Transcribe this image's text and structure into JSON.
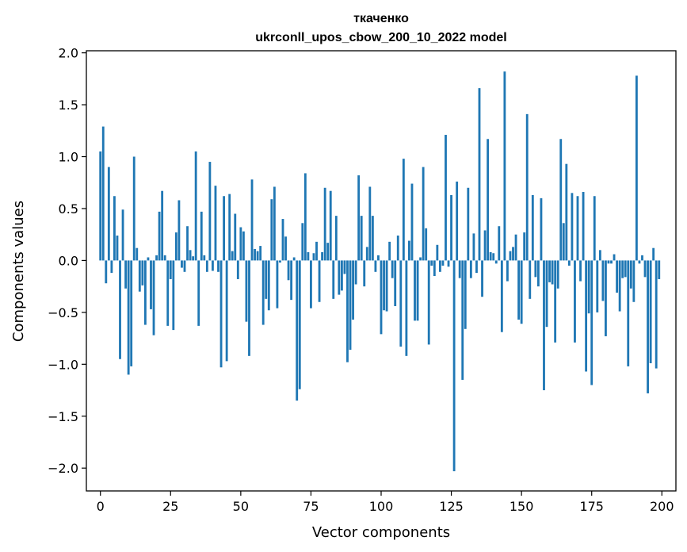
{
  "chart_data": {
    "type": "bar",
    "title_line1": "ткаченко",
    "title_line2": "ukrconll_upos_cbow_200_10_2022 model",
    "xlabel": "Vector components",
    "ylabel": "Components values",
    "xlim": [
      -5,
      205
    ],
    "ylim": [
      -2.22,
      2.02
    ],
    "xticks": [
      0,
      25,
      50,
      75,
      100,
      125,
      150,
      175,
      200
    ],
    "xtick_labels": [
      "0",
      "25",
      "50",
      "75",
      "100",
      "125",
      "150",
      "175",
      "200"
    ],
    "yticks": [
      2.0,
      1.5,
      1.0,
      0.5,
      0.0,
      -0.5,
      -1.0,
      -1.5,
      -2.0
    ],
    "ytick_labels": [
      "2.0",
      "1.5",
      "1.0",
      "0.5",
      "0.0",
      "−0.5",
      "−1.0",
      "−1.5",
      "−2.0"
    ],
    "bar_color": "#1f77b4",
    "bar_width": 0.8,
    "values": [
      1.05,
      1.29,
      -0.22,
      0.9,
      -0.12,
      0.62,
      0.24,
      -0.95,
      0.49,
      -0.27,
      -1.1,
      -1.02,
      1.0,
      0.12,
      -0.3,
      -0.24,
      -0.62,
      0.03,
      -0.47,
      -0.72,
      0.05,
      0.47,
      0.67,
      0.05,
      -0.63,
      -0.18,
      -0.67,
      0.27,
      0.58,
      -0.07,
      -0.11,
      0.33,
      0.1,
      0.04,
      1.05,
      -0.63,
      0.47,
      0.05,
      -0.11,
      0.95,
      -0.1,
      0.72,
      -0.11,
      -1.03,
      0.62,
      -0.97,
      0.64,
      0.09,
      0.45,
      -0.18,
      0.32,
      0.28,
      -0.59,
      -0.92,
      0.78,
      0.11,
      0.09,
      0.14,
      -0.62,
      -0.37,
      -0.48,
      0.59,
      0.71,
      -0.46,
      -0.02,
      0.4,
      0.23,
      -0.19,
      -0.38,
      0.03,
      -1.35,
      -1.24,
      0.36,
      0.84,
      0.08,
      -0.46,
      0.07,
      0.18,
      -0.4,
      0.08,
      0.7,
      0.17,
      0.67,
      -0.37,
      0.43,
      -0.33,
      -0.29,
      -0.13,
      -0.98,
      -0.86,
      -0.57,
      -0.23,
      0.82,
      0.43,
      -0.25,
      0.13,
      0.71,
      0.43,
      -0.11,
      0.05,
      -0.71,
      -0.48,
      -0.49,
      0.18,
      -0.17,
      -0.44,
      0.24,
      -0.83,
      0.98,
      -0.92,
      0.19,
      0.74,
      -0.58,
      -0.58,
      0.03,
      0.9,
      0.31,
      -0.81,
      -0.05,
      -0.15,
      0.15,
      -0.11,
      -0.05,
      1.21,
      -0.06,
      0.63,
      -2.03,
      0.76,
      -0.17,
      -1.15,
      -0.66,
      0.7,
      -0.17,
      0.26,
      -0.12,
      1.66,
      -0.35,
      0.29,
      1.17,
      0.08,
      0.07,
      -0.03,
      0.33,
      -0.69,
      1.82,
      -0.2,
      0.09,
      0.13,
      0.25,
      -0.57,
      -0.61,
      0.27,
      1.41,
      -0.37,
      0.63,
      -0.16,
      -0.25,
      0.6,
      -1.25,
      -0.64,
      -0.21,
      -0.23,
      -0.79,
      -0.27,
      1.17,
      0.36,
      0.93,
      -0.05,
      0.65,
      -0.79,
      0.62,
      -0.2,
      0.66,
      -1.07,
      -0.51,
      -1.2,
      0.62,
      -0.5,
      0.1,
      -0.39,
      -0.73,
      -0.03,
      -0.03,
      0.06,
      -0.31,
      -0.49,
      -0.17,
      -0.16,
      -1.02,
      -0.27,
      -0.4,
      1.78,
      -0.03,
      0.05,
      -0.16,
      -1.28,
      -0.99,
      0.12,
      -1.04,
      -0.18
    ]
  }
}
